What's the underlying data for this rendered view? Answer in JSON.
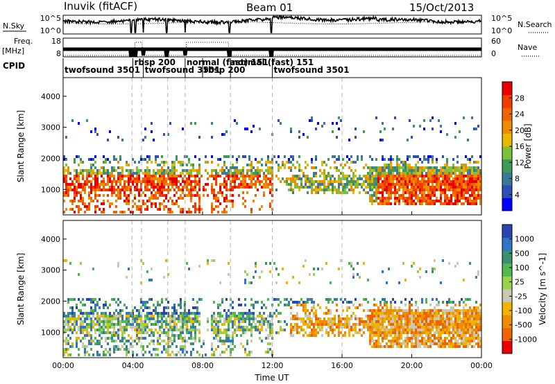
{
  "header": {
    "station": "Inuvik (fitACF)",
    "beam": "Beam 01",
    "date": "15/Oct/2013"
  },
  "noise_panel": {
    "left_label": "N.Sky",
    "right_label": "N.Search",
    "left_ticks": [
      "10^5",
      "10^0"
    ],
    "right_ticks": [
      "10^5",
      "10^0"
    ]
  },
  "freq_panel": {
    "left_label_1": "Freq.",
    "left_label_2": "[MHz]",
    "right_label": "Nave",
    "left_ticks": [
      "18",
      "8"
    ],
    "right_ticks": [
      "60",
      "0"
    ]
  },
  "cpid": {
    "label": "CPID",
    "segments": [
      {
        "name": "twofsound 3501",
        "start": 0.0,
        "end": 4.0
      },
      {
        "name": "rbsp 200",
        "start": 4.0,
        "end": 4.6
      },
      {
        "name": "twofsound 3501",
        "start": 4.6,
        "end": 7.0
      },
      {
        "name": "normal (fast) 151",
        "start": 7.0,
        "end": 8.0
      },
      {
        "name": "rbsp 200",
        "start": 8.0,
        "end": 9.6
      },
      {
        "name": "normal (fast) 151",
        "start": 9.6,
        "end": 12.0
      },
      {
        "name": "twofsound 3501",
        "start": 12.0,
        "end": 24.0
      }
    ]
  },
  "colors": {
    "power": [
      "#0000ff",
      "#2c4fb4",
      "#3a7a96",
      "#3f9a5a",
      "#7cc13b",
      "#e6b800",
      "#f08c00",
      "#f06400",
      "#f03c00",
      "#e80000"
    ],
    "velocity": [
      "#2a44b2",
      "#2f77c4",
      "#3b8f6e",
      "#4fb84f",
      "#9ad24a",
      "#c8c8b4",
      "#f0b400",
      "#f08c00",
      "#f06400",
      "#e80000"
    ]
  },
  "chart_data": [
    {
      "type": "heatmap",
      "title": "Power",
      "xlabel": "Time UT",
      "ylabel": "Slant Range [km]",
      "colorbar_label": "Power [dB]",
      "colorbar_ticks": [
        "4",
        "8",
        "12",
        "16",
        "20",
        "24",
        "28"
      ],
      "x_ticks": [
        "00:00",
        "04:00",
        "08:00",
        "12:00",
        "16:00",
        "20:00",
        "00:00"
      ],
      "y_ticks": [
        "1000",
        "2000",
        "3000",
        "4000"
      ],
      "xlim_hours": [
        0,
        24
      ],
      "ylim_km": [
        180,
        4600
      ],
      "color_range": [
        0,
        32
      ]
    },
    {
      "type": "heatmap",
      "title": "Velocity",
      "xlabel": "Time UT",
      "ylabel": "Slant Range [km]",
      "colorbar_label": "Velocity [m s^-1]",
      "colorbar_ticks": [
        "-1000",
        "-500",
        "-100",
        "-25",
        "25",
        "100",
        "500",
        "1000"
      ],
      "x_ticks": [
        "00:00",
        "04:00",
        "08:00",
        "12:00",
        "16:00",
        "20:00",
        "00:00"
      ],
      "y_ticks": [
        "1000",
        "2000",
        "3000",
        "4000"
      ],
      "xlim_hours": [
        0,
        24
      ],
      "ylim_km": [
        180,
        4600
      ],
      "color_range": [
        -1000,
        1000
      ]
    }
  ]
}
